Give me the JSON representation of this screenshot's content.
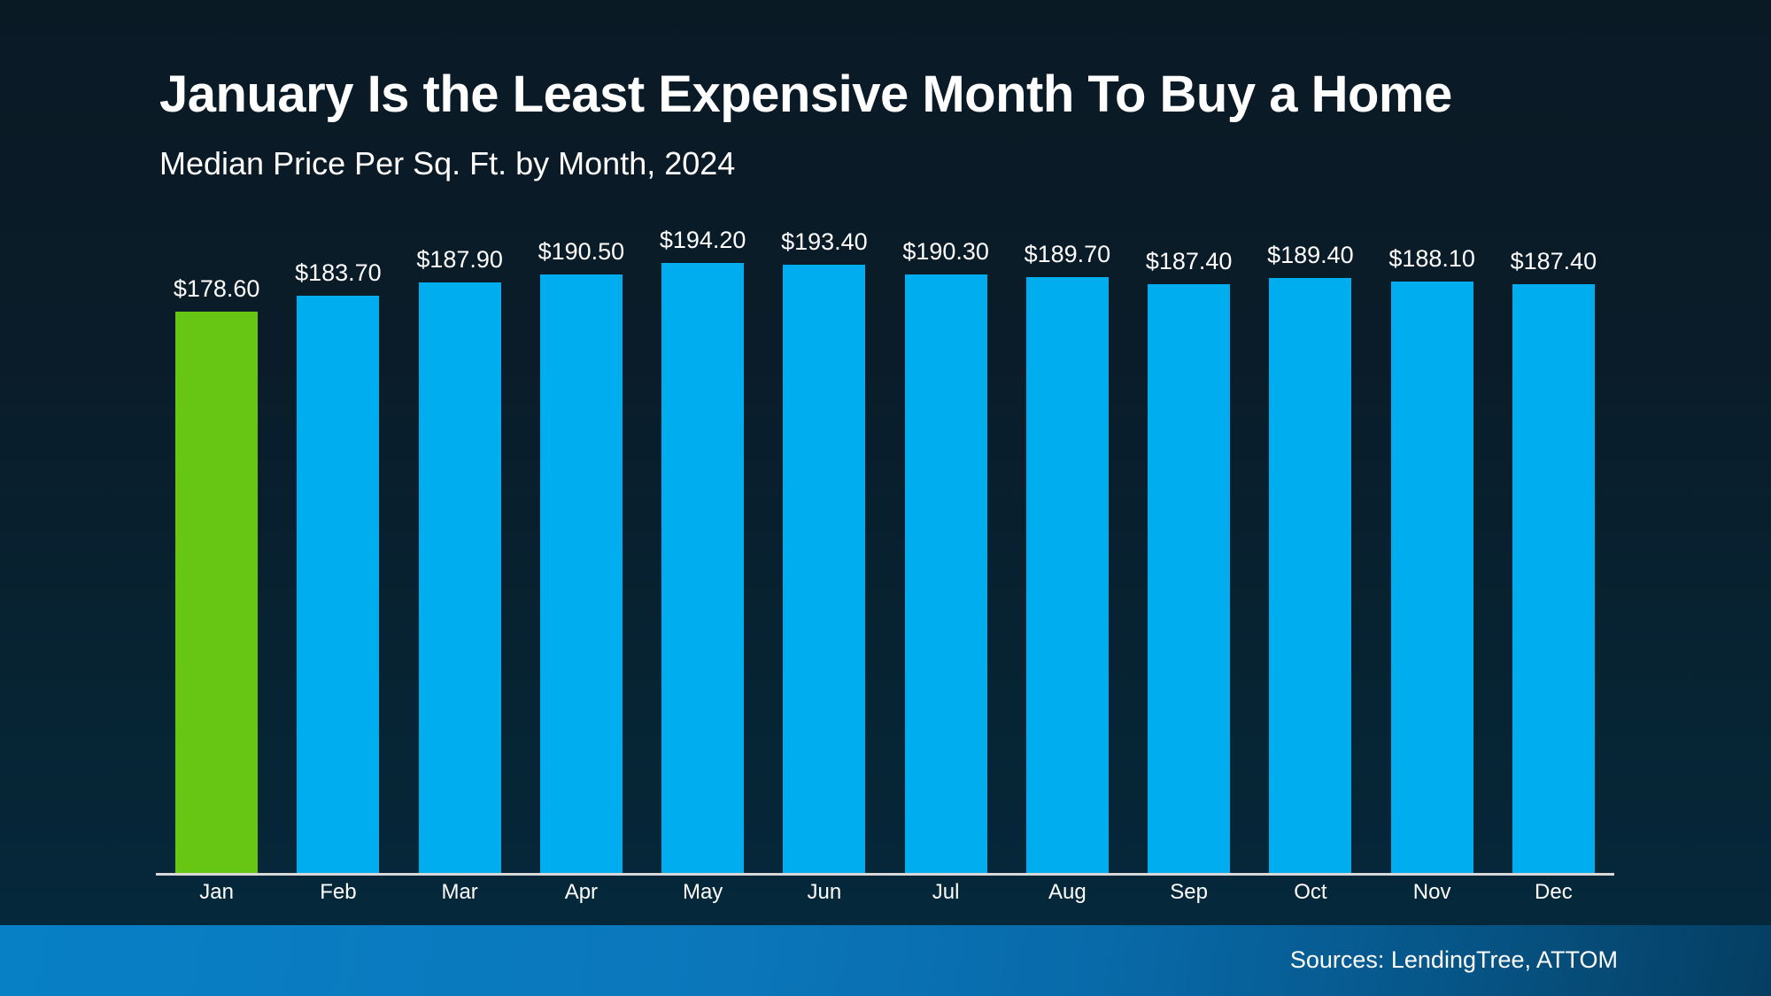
{
  "header": {
    "title": "January Is the Least Expensive Month To Buy a Home",
    "subtitle": "Median Price Per Sq. Ft. by Month, 2024"
  },
  "chart_data": {
    "type": "bar",
    "title": "January Is the Least Expensive Month To Buy a Home",
    "subtitle": "Median Price Per Sq. Ft. by Month, 2024",
    "categories": [
      "Jan",
      "Feb",
      "Mar",
      "Apr",
      "May",
      "Jun",
      "Jul",
      "Aug",
      "Sep",
      "Oct",
      "Nov",
      "Dec"
    ],
    "values": [
      178.6,
      183.7,
      187.9,
      190.5,
      194.2,
      193.4,
      190.3,
      189.7,
      187.4,
      189.4,
      188.1,
      187.4
    ],
    "value_labels": [
      "$178.60",
      "$183.70",
      "$187.90",
      "$190.50",
      "$194.20",
      "$193.40",
      "$190.30",
      "$189.70",
      "$187.40",
      "$189.40",
      "$188.10",
      "$187.40"
    ],
    "highlight_index": 0,
    "highlight_category": "Jan",
    "xlabel": "",
    "ylabel": "",
    "ylim": [
      0,
      200
    ],
    "grid": false,
    "legend": false,
    "axis_line": "bottom-only",
    "colors": {
      "bar": "#00aeef",
      "highlight": "#66c613",
      "axis_line": "#d8d8d8",
      "label_text": "#ffffff",
      "background_top": "#0a1a25",
      "background_bottom": "#04293d",
      "footer_band_left": "#0880c6",
      "footer_band_right": "#053e62"
    }
  },
  "footer": {
    "sources": "Sources: LendingTree, ATTOM"
  }
}
